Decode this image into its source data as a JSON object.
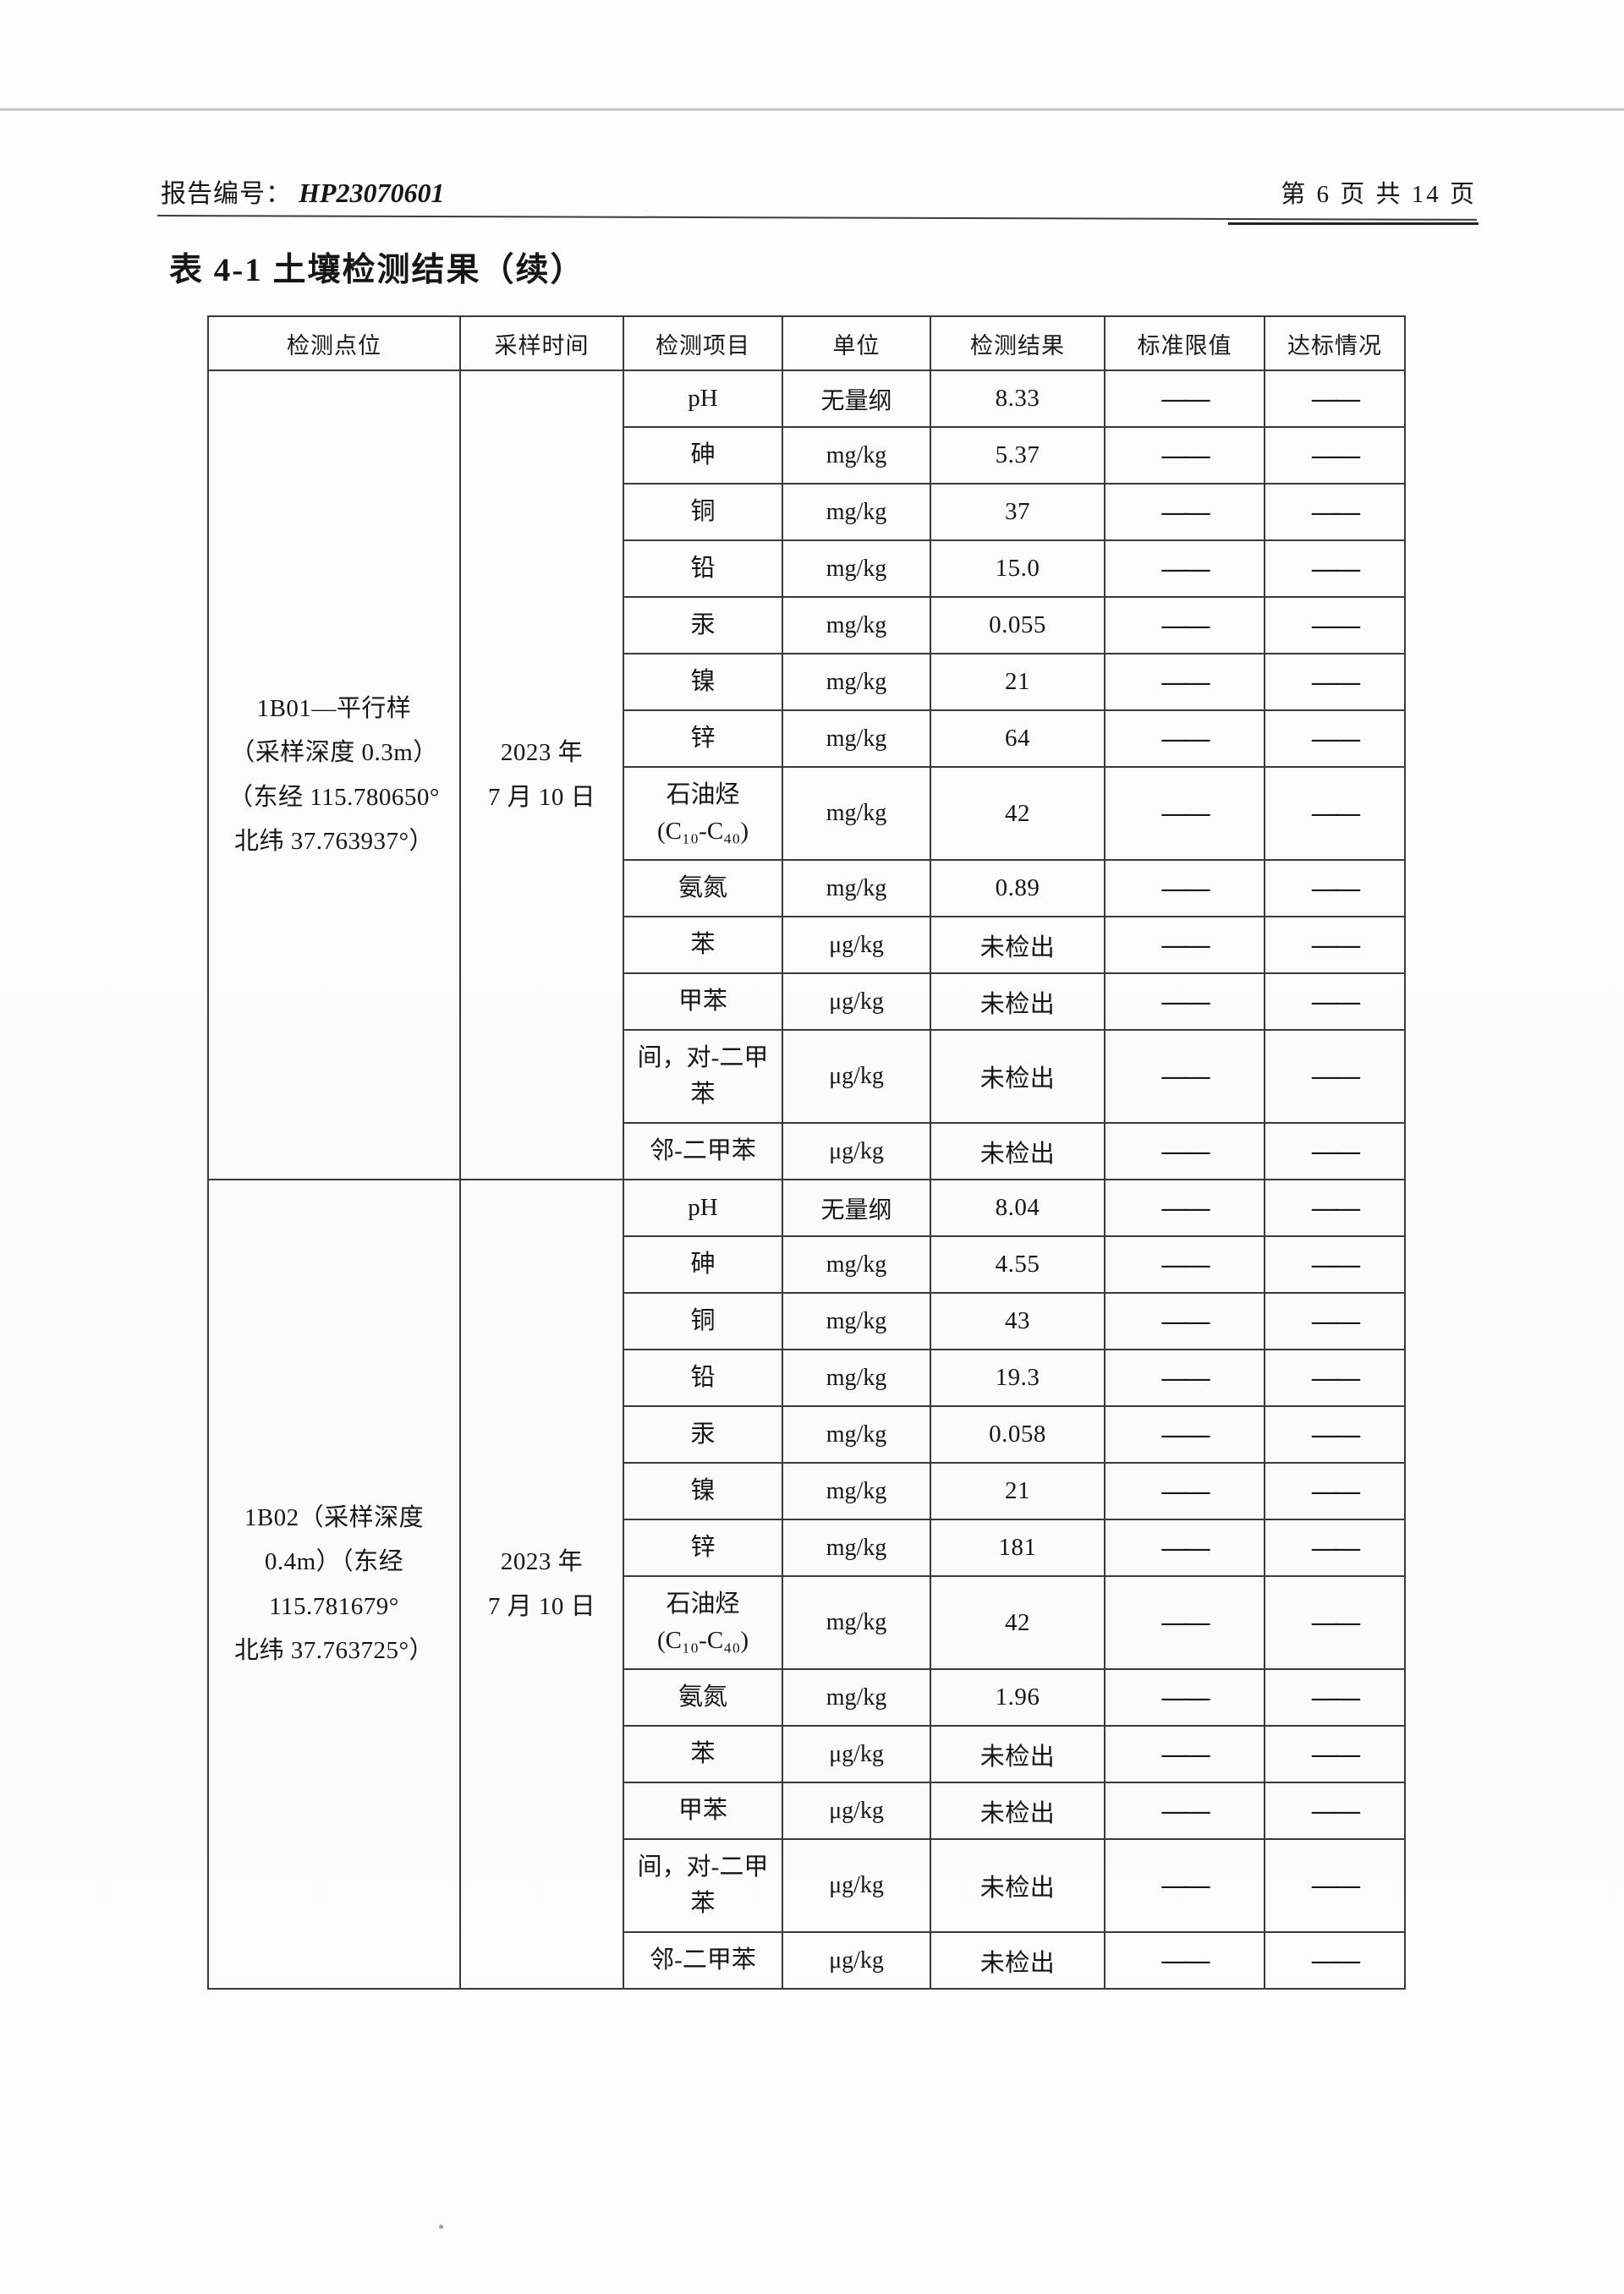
{
  "page": {
    "report_label": "报告编号：",
    "report_number": "HP23070601",
    "page_info": "第 6 页 共 14 页",
    "title": "表 4-1 土壤检测结果（续）"
  },
  "table": {
    "headers": [
      "检测点位",
      "采样时间",
      "检测项目",
      "单位",
      "检测结果",
      "标准限值",
      "达标情况"
    ],
    "dash": "——",
    "groups": [
      {
        "location": "1B01—平行样\n（采样深度 0.3m）\n（东经 115.780650°\n北纬 37.763937°）",
        "sample_time": "2023 年\n7 月 10 日",
        "rows": [
          {
            "item": "pH",
            "unit": "无量纲",
            "result": "8.33"
          },
          {
            "item": "砷",
            "unit": "mg/kg",
            "result": "5.37"
          },
          {
            "item": "铜",
            "unit": "mg/kg",
            "result": "37"
          },
          {
            "item": "铅",
            "unit": "mg/kg",
            "result": "15.0"
          },
          {
            "item": "汞",
            "unit": "mg/kg",
            "result": "0.055"
          },
          {
            "item": "镍",
            "unit": "mg/kg",
            "result": "21"
          },
          {
            "item": "锌",
            "unit": "mg/kg",
            "result": "64"
          },
          {
            "item": "石油烃\n(C₁₀-C₄₀)",
            "unit": "mg/kg",
            "result": "42"
          },
          {
            "item": "氨氮",
            "unit": "mg/kg",
            "result": "0.89"
          },
          {
            "item": "苯",
            "unit": "μg/kg",
            "result": "未检出"
          },
          {
            "item": "甲苯",
            "unit": "μg/kg",
            "result": "未检出"
          },
          {
            "item": "间，对-二甲苯",
            "unit": "μg/kg",
            "result": "未检出"
          },
          {
            "item": "邻-二甲苯",
            "unit": "μg/kg",
            "result": "未检出"
          }
        ]
      },
      {
        "location": "1B02（采样深度\n0.4m）（东经\n115.781679°\n北纬 37.763725°）",
        "sample_time": "2023 年\n7 月 10 日",
        "rows": [
          {
            "item": "pH",
            "unit": "无量纲",
            "result": "8.04"
          },
          {
            "item": "砷",
            "unit": "mg/kg",
            "result": "4.55"
          },
          {
            "item": "铜",
            "unit": "mg/kg",
            "result": "43"
          },
          {
            "item": "铅",
            "unit": "mg/kg",
            "result": "19.3"
          },
          {
            "item": "汞",
            "unit": "mg/kg",
            "result": "0.058"
          },
          {
            "item": "镍",
            "unit": "mg/kg",
            "result": "21"
          },
          {
            "item": "锌",
            "unit": "mg/kg",
            "result": "181"
          },
          {
            "item": "石油烃\n(C₁₀-C₄₀)",
            "unit": "mg/kg",
            "result": "42"
          },
          {
            "item": "氨氮",
            "unit": "mg/kg",
            "result": "1.96"
          },
          {
            "item": "苯",
            "unit": "μg/kg",
            "result": "未检出"
          },
          {
            "item": "甲苯",
            "unit": "μg/kg",
            "result": "未检出"
          },
          {
            "item": "间，对-二甲苯",
            "unit": "μg/kg",
            "result": "未检出"
          },
          {
            "item": "邻-二甲苯",
            "unit": "μg/kg",
            "result": "未检出"
          }
        ]
      }
    ]
  }
}
